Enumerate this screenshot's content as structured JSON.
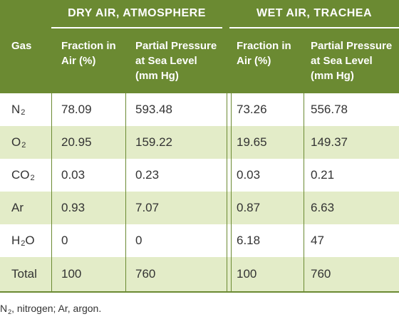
{
  "header": {
    "group_dry": "DRY AIR, ATMOSPHERE",
    "group_wet": "WET AIR, TRACHEA",
    "col_gas": "Gas",
    "col_fraction_line1": "Fraction in",
    "col_fraction_line2": "Air (%)",
    "col_pressure_line1": "Partial Pressure",
    "col_pressure_line2": "at Sea Level",
    "col_pressure_line3": "(mm Hg)"
  },
  "rows": [
    {
      "gas": "N",
      "sub": "2",
      "dry_fraction": "78.09",
      "dry_pressure": "593.48",
      "wet_fraction": "73.26",
      "wet_pressure": "556.78"
    },
    {
      "gas": "O",
      "sub": "2",
      "dry_fraction": "20.95",
      "dry_pressure": "159.22",
      "wet_fraction": "19.65",
      "wet_pressure": "149.37"
    },
    {
      "gas": "CO",
      "sub": "2",
      "dry_fraction": "0.03",
      "dry_pressure": "0.23",
      "wet_fraction": "0.03",
      "wet_pressure": "0.21"
    },
    {
      "gas": "Ar",
      "sub": "",
      "dry_fraction": "0.93",
      "dry_pressure": "7.07",
      "wet_fraction": "0.87",
      "wet_pressure": "6.63"
    },
    {
      "gas": "H",
      "sub": "2",
      "gas_tail": "O",
      "dry_fraction": "0",
      "dry_pressure": "0",
      "wet_fraction": "6.18",
      "wet_pressure": "47"
    },
    {
      "gas": "Total",
      "sub": "",
      "dry_fraction": "100",
      "dry_pressure": "760",
      "wet_fraction": "100",
      "wet_pressure": "760"
    }
  ],
  "footnote": {
    "part1": "N",
    "sub": "2",
    "part2": ", nitrogen; Ar, argon."
  },
  "colors": {
    "header_bg": "#6b8a32",
    "alt_row_bg": "#e3ecc8"
  }
}
